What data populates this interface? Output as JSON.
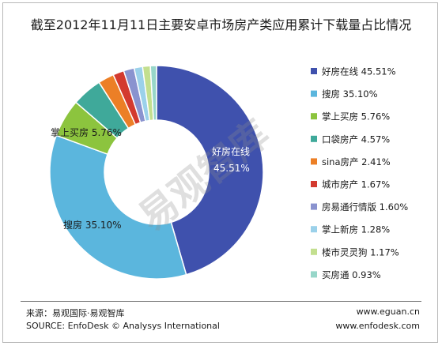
{
  "chart_data": {
    "type": "pie",
    "donut": true,
    "title": "截至2012年11月11日主要安卓市场房产类应用累计下载量占比情况",
    "slices": [
      {
        "label": "好房在线",
        "value": 45.51,
        "display": "45.51%",
        "color": "#3f51ad"
      },
      {
        "label": "搜房",
        "value": 35.1,
        "display": "35.10%",
        "color": "#5bb6dd"
      },
      {
        "label": "掌上买房",
        "value": 5.76,
        "display": "5.76%",
        "color": "#8cc43e"
      },
      {
        "label": "口袋房产",
        "value": 4.57,
        "display": "4.57%",
        "color": "#3fa99a"
      },
      {
        "label": "sina房产",
        "value": 2.41,
        "display": "2.41%",
        "color": "#ec7f26"
      },
      {
        "label": "城市房产",
        "value": 1.67,
        "display": "1.67%",
        "color": "#d33a2f"
      },
      {
        "label": "房易通行情版",
        "value": 1.6,
        "display": "1.60%",
        "color": "#8a93cf"
      },
      {
        "label": "掌上新房",
        "value": 1.28,
        "display": "1.28%",
        "color": "#9bd1ea"
      },
      {
        "label": "楼市灵灵狗",
        "value": 1.17,
        "display": "1.17%",
        "color": "#c3df8f"
      },
      {
        "label": "买房通",
        "value": 0.93,
        "display": "0.93%",
        "color": "#97d6c9"
      }
    ],
    "data_labels": [
      {
        "label": "好房在线",
        "value": "45.51%"
      },
      {
        "label": "搜房",
        "value": "35.10%"
      },
      {
        "label": "掌上买房",
        "value": "5.76%"
      }
    ],
    "legend_position": "right"
  },
  "watermark": "易观智库",
  "footer": {
    "source_cn": "来源：易观国际·易观智库",
    "source_en": "SOURCE:  EnfoDesk © Analysys International",
    "url1": "www.eguan.cn",
    "url2": "www.enfodesk.com"
  }
}
